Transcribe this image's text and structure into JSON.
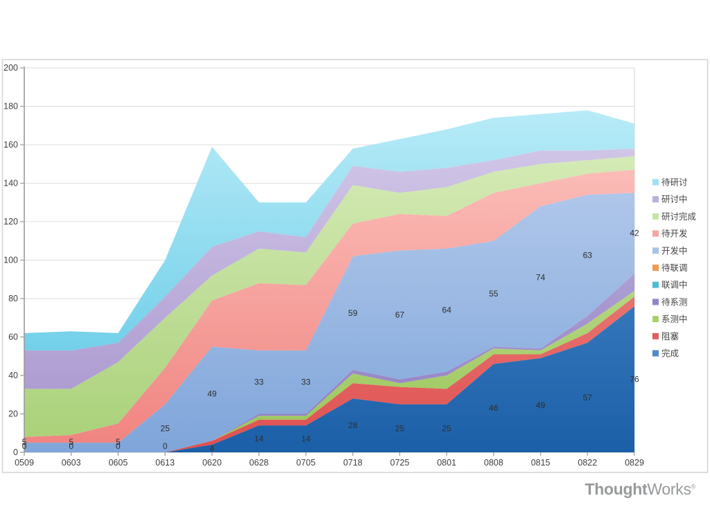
{
  "chart_data": {
    "type": "area",
    "stacked": true,
    "title": "",
    "grid": true,
    "legend_position": "right",
    "ylim": [
      0,
      200
    ],
    "ytick_step": 20,
    "categories": [
      "0509",
      "0603",
      "0605",
      "0613",
      "0620",
      "0628",
      "0705",
      "0718",
      "0725",
      "0801",
      "0808",
      "0815",
      "0822",
      "0829"
    ],
    "series": [
      {
        "key": "done",
        "name": "完成",
        "show_labels": true,
        "base": "#1B5FA8",
        "light": "#5F9DD8",
        "legend_color": "#4E8BC8",
        "values": [
          0,
          0,
          0,
          0,
          4,
          14,
          14,
          28,
          25,
          25,
          46,
          49,
          57,
          76
        ]
      },
      {
        "key": "blocked",
        "name": "阻塞",
        "show_labels": false,
        "base": "#DE4F4F",
        "light": "#F5A9A3",
        "legend_color": "#DF5F5C",
        "values": [
          0,
          0,
          0,
          0,
          2,
          3,
          3,
          8,
          9,
          8,
          5,
          2,
          5,
          5
        ]
      },
      {
        "key": "sys-testing",
        "name": "系测中",
        "show_labels": false,
        "base": "#98C556",
        "light": "#DCEDBB",
        "legend_color": "#A8CE6C",
        "values": [
          0,
          0,
          0,
          0,
          0,
          2,
          2,
          5,
          2,
          7,
          3,
          2,
          5,
          3
        ]
      },
      {
        "key": "to-sys-test",
        "name": "待系测",
        "show_labels": false,
        "base": "#8C7ABF",
        "light": "#D3C9EA",
        "legend_color": "#9484C6",
        "values": [
          0,
          0,
          0,
          0,
          0,
          1,
          1,
          2,
          2,
          2,
          1,
          1,
          4,
          9
        ]
      },
      {
        "key": "integrating",
        "name": "联调中",
        "show_labels": false,
        "base": "#3BB4CE",
        "light": "#B0E6F2",
        "legend_color": "#4FBCD6",
        "values": [
          0,
          0,
          0,
          0,
          0,
          0,
          0,
          0,
          0,
          0,
          0,
          0,
          0,
          0
        ]
      },
      {
        "key": "to-integrate",
        "name": "待联调",
        "show_labels": false,
        "base": "#EE9440",
        "light": "#FBD9B4",
        "legend_color": "#F09A52",
        "values": [
          0,
          0,
          0,
          0,
          0,
          0,
          0,
          0,
          0,
          0,
          0,
          0,
          0,
          0
        ]
      },
      {
        "key": "developing",
        "name": "开发中",
        "show_labels": true,
        "base": "#7FA5DA",
        "light": "#C6D7F2",
        "legend_color": "#A9C3E8",
        "values": [
          5,
          5,
          5,
          25,
          49,
          33,
          33,
          59,
          67,
          64,
          55,
          74,
          63,
          42
        ]
      },
      {
        "key": "to-develop",
        "name": "待开发",
        "show_labels": false,
        "base": "#F0837F",
        "light": "#FFD0CB",
        "legend_color": "#F4A6A0",
        "values": [
          3,
          4,
          10,
          19,
          24,
          35,
          34,
          17,
          19,
          17,
          25,
          12,
          11,
          12
        ]
      },
      {
        "key": "discussed",
        "name": "研讨完成",
        "show_labels": false,
        "base": "#A8D077",
        "light": "#E2F2C8",
        "legend_color": "#C8E4A5",
        "values": [
          25,
          24,
          32,
          26,
          13,
          18,
          17,
          20,
          11,
          15,
          11,
          10,
          7,
          7
        ]
      },
      {
        "key": "discussing",
        "name": "研讨中",
        "show_labels": false,
        "base": "#A592CC",
        "light": "#DCD3EE",
        "legend_color": "#BCAEDC",
        "values": [
          20,
          20,
          10,
          11,
          15,
          9,
          8,
          10,
          11,
          10,
          6,
          7,
          5,
          4
        ]
      },
      {
        "key": "to-discuss",
        "name": "待研讨",
        "show_labels": false,
        "base": "#56C4E4",
        "light": "#C4F0FA",
        "legend_color": "#9FE0F2",
        "values": [
          9,
          10,
          5,
          19,
          52,
          15,
          18,
          9,
          17,
          20,
          22,
          19,
          21,
          13
        ]
      }
    ]
  },
  "frame": {
    "border_color": "#d6d6d6"
  },
  "axes": {
    "grid_color": "#dcdcdc",
    "baseline_color": "#c4c4c4",
    "axis_color": "#9a9a9a",
    "right_border_color": "#cfcfcf"
  },
  "footer": {
    "logo_bold": "Thought",
    "logo_regular": "Works",
    "logo_mark": "®"
  }
}
